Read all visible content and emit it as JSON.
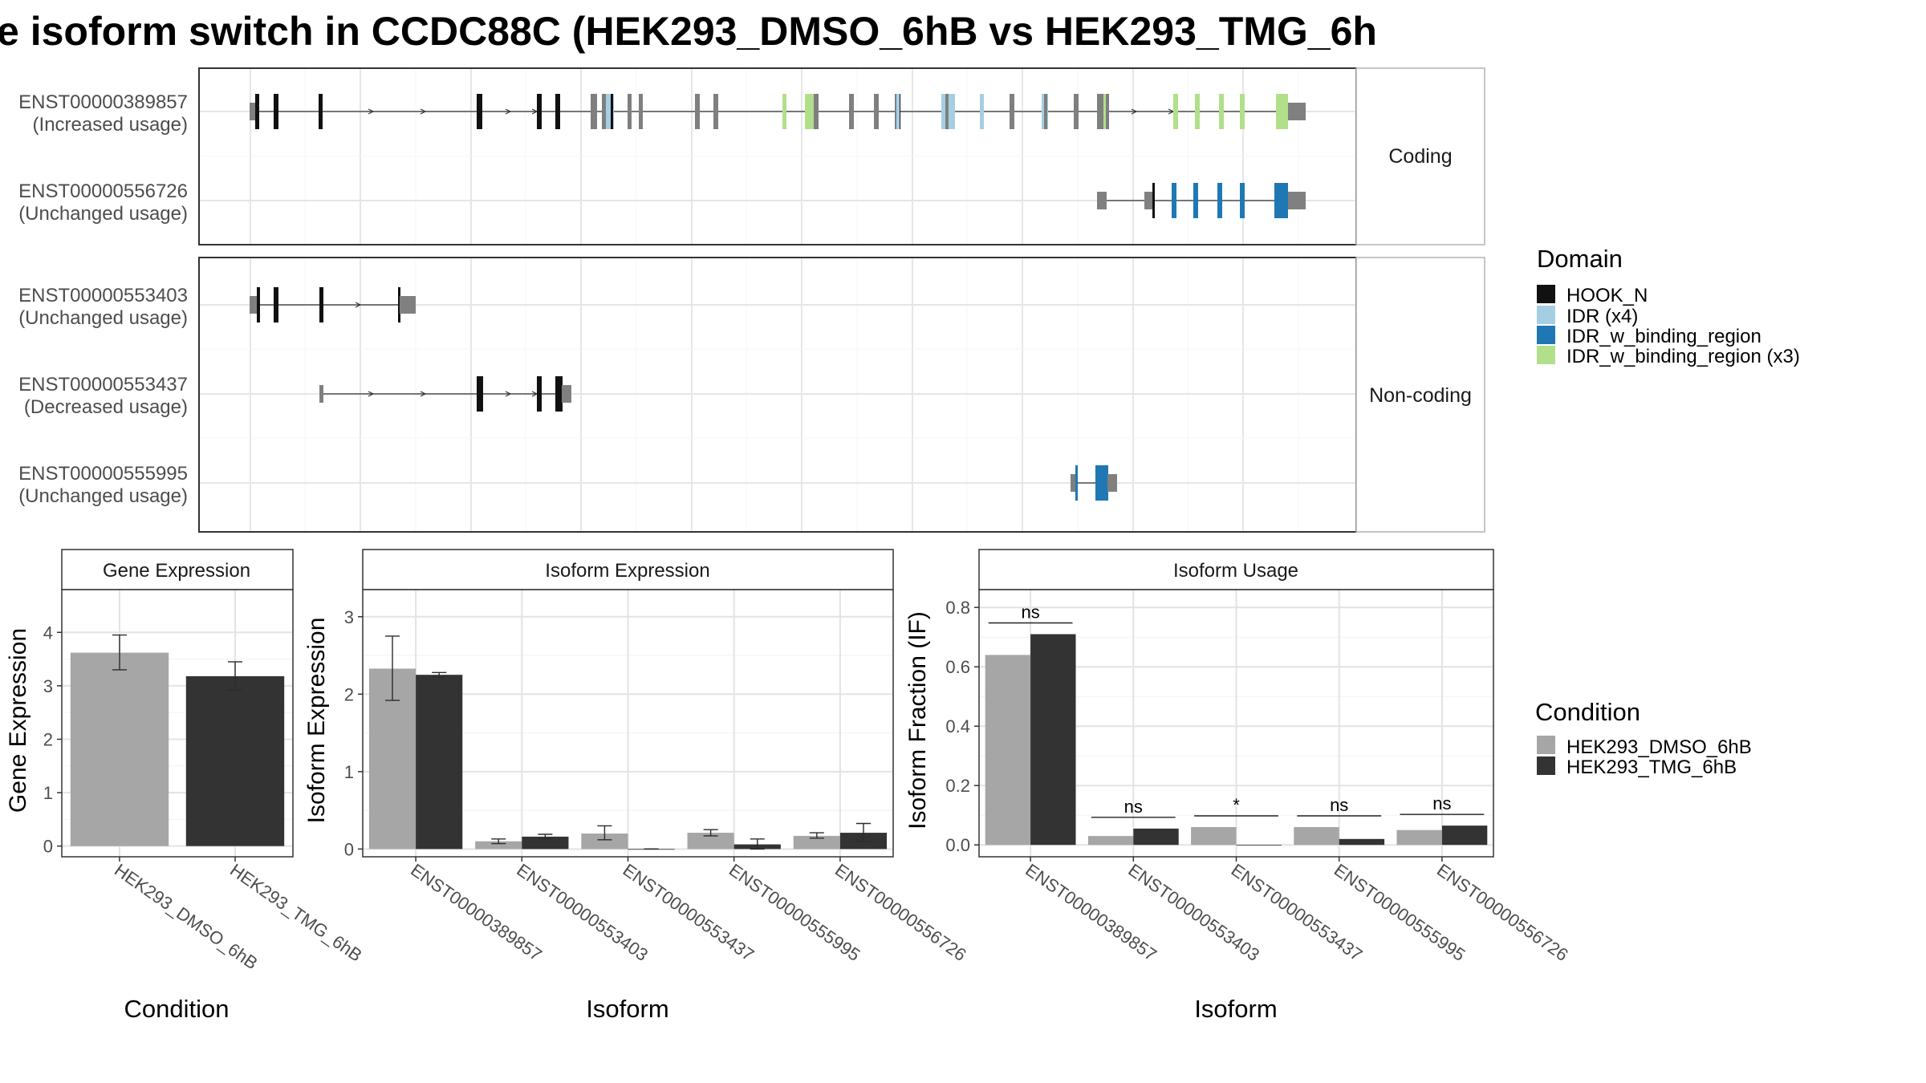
{
  "title": "e isoform switch in CCDC88C (HEK293_DMSO_6hB vs HEK293_TMG_6h",
  "colors": {
    "cond1": "#a6a6a6",
    "cond2": "#333333",
    "utr": "#808080",
    "HOOK_N": "#111111",
    "IDR (x4)": "#a6cee3",
    "IDR_w_binding_region": "#1f78b4",
    "IDR_w_binding_region (x3)": "#b2df8a",
    "grid": "#ebebeb",
    "panelBorder": "#333333",
    "stripBg": "#ffffff"
  },
  "structure": {
    "groups": [
      {
        "strip": "Coding",
        "isoforms": [
          {
            "id": "ENST00000389857",
            "usage": "(Increased usage)"
          },
          {
            "id": "ENST00000556726",
            "usage": "(Unchanged usage)"
          }
        ]
      },
      {
        "strip": "Non-coding",
        "isoforms": [
          {
            "id": "ENST00000553403",
            "usage": "(Unchanged usage)"
          },
          {
            "id": "ENST00000553437",
            "usage": "(Decreased usage)"
          },
          {
            "id": "ENST00000555995",
            "usage": "(Unchanged usage)"
          }
        ]
      }
    ],
    "domain_legend": {
      "title": "Domain",
      "items": [
        "HOOK_N",
        "IDR (x4)",
        "IDR_w_binding_region",
        "IDR_w_binding_region (x3)"
      ]
    }
  },
  "chart_data": [
    {
      "type": "bar",
      "title": "Gene Expression",
      "xlabel": "Condition",
      "ylabel": "Gene Expression",
      "categories": [
        "HEK293_DMSO_6hB",
        "HEK293_TMG_6hB"
      ],
      "values": [
        3.62,
        3.18
      ],
      "errors": [
        [
          3.3,
          3.95
        ],
        [
          2.92,
          3.45
        ]
      ],
      "ylim": [
        -0.2,
        4.8
      ],
      "yticks": [
        0,
        1,
        2,
        3,
        4
      ],
      "grid": true
    },
    {
      "type": "bar",
      "title": "Isoform Expression",
      "xlabel": "Isoform",
      "ylabel": "Isoform Expression",
      "categories": [
        "ENST00000389857",
        "ENST00000553403",
        "ENST00000553437",
        "ENST00000555995",
        "ENST00000556726"
      ],
      "series": [
        {
          "name": "HEK293_DMSO_6hB",
          "values": [
            2.33,
            0.1,
            0.2,
            0.21,
            0.17
          ],
          "errors": [
            [
              1.92,
              2.75
            ],
            [
              0.07,
              0.13
            ],
            [
              0.12,
              0.3
            ],
            [
              0.17,
              0.25
            ],
            [
              0.14,
              0.21
            ]
          ]
        },
        {
          "name": "HEK293_TMG_6hB",
          "values": [
            2.25,
            0.16,
            0.0,
            0.06,
            0.21
          ],
          "errors": [
            [
              2.22,
              2.28
            ],
            [
              0.13,
              0.19
            ],
            [
              0.0,
              0.0
            ],
            [
              0.0,
              0.13
            ],
            [
              0.1,
              0.33
            ]
          ]
        }
      ],
      "ylim": [
        -0.1,
        3.35
      ],
      "yticks": [
        0,
        1,
        2,
        3
      ],
      "grid": true
    },
    {
      "type": "bar",
      "title": "Isoform Usage",
      "xlabel": "Isoform",
      "ylabel": "Isoform Fraction (IF)",
      "categories": [
        "ENST00000389857",
        "ENST00000553403",
        "ENST00000553437",
        "ENST00000555995",
        "ENST00000556726"
      ],
      "series": [
        {
          "name": "HEK293_DMSO_6hB",
          "values": [
            0.64,
            0.03,
            0.06,
            0.06,
            0.05
          ]
        },
        {
          "name": "HEK293_TMG_6hB",
          "values": [
            0.71,
            0.055,
            0.0,
            0.02,
            0.065
          ]
        }
      ],
      "significance": [
        "ns",
        "ns",
        "*",
        "ns",
        "ns"
      ],
      "ylim": [
        -0.04,
        0.86
      ],
      "yticks": [
        0.0,
        0.2,
        0.4,
        0.6,
        0.8
      ],
      "ytick_labels": [
        "0.0",
        "0.2",
        "0.4",
        "0.6",
        "0.8"
      ],
      "grid": true
    }
  ],
  "condition_legend": {
    "title": "Condition",
    "items": [
      "HEK293_DMSO_6hB",
      "HEK293_TMG_6hB"
    ]
  }
}
